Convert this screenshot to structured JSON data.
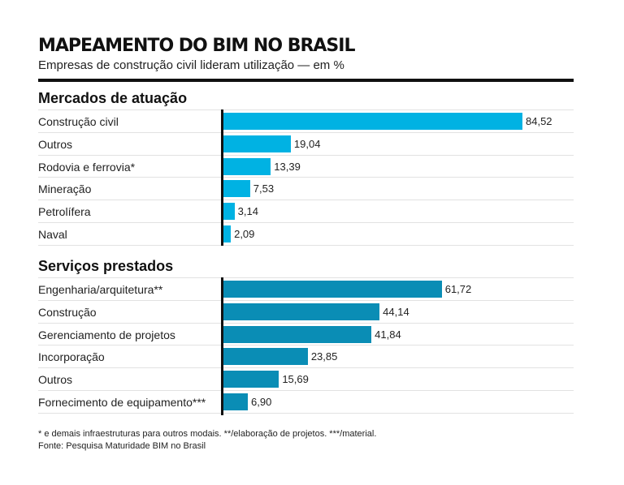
{
  "chart_data": [
    {
      "type": "bar",
      "title": "MAPEAMENTO DO BIM NO BRASIL",
      "subtitle": "Empresas de construção civil lideram utilização — em %",
      "section": "Mercados de atuação",
      "categories": [
        "Construção civil",
        "Outros",
        "Rodovia e ferrovia*",
        "Mineração",
        "Petrolífera",
        "Naval"
      ],
      "values": [
        84.52,
        19.04,
        13.39,
        7.53,
        3.14,
        2.09
      ],
      "labels": [
        "84,52",
        "19,04",
        "13,39",
        "7,53",
        "3,14",
        "2,09"
      ],
      "color": "#00b2e3",
      "orientation": "horizontal",
      "xlim": [
        0,
        100
      ],
      "unit": "%"
    },
    {
      "type": "bar",
      "section": "Serviços prestados",
      "categories": [
        "Engenharia/arquitetura**",
        "Construção",
        "Gerenciamento de projetos",
        "Incorporação",
        "Outros",
        "Fornecimento de equipamento***"
      ],
      "values": [
        61.72,
        44.14,
        41.84,
        23.85,
        15.69,
        6.9
      ],
      "labels": [
        "61,72",
        "44,14",
        "41,84",
        "23,85",
        "15,69",
        "6,90"
      ],
      "color": "#0a8db5",
      "orientation": "horizontal",
      "xlim": [
        0,
        100
      ],
      "unit": "%"
    }
  ],
  "header": {
    "title": "MAPEAMENTO DO BIM NO BRASIL",
    "subtitle": "Empresas de construção civil lideram utilização — em %"
  },
  "sections": {
    "markets": "Mercados de atuação",
    "services": "Serviços prestados"
  },
  "footer": {
    "note": "* e demais infraestruturas para outros modais. **/elaboração de projetos. ***/material.",
    "source": "Fonte: Pesquisa Maturidade BIM no Brasil"
  }
}
